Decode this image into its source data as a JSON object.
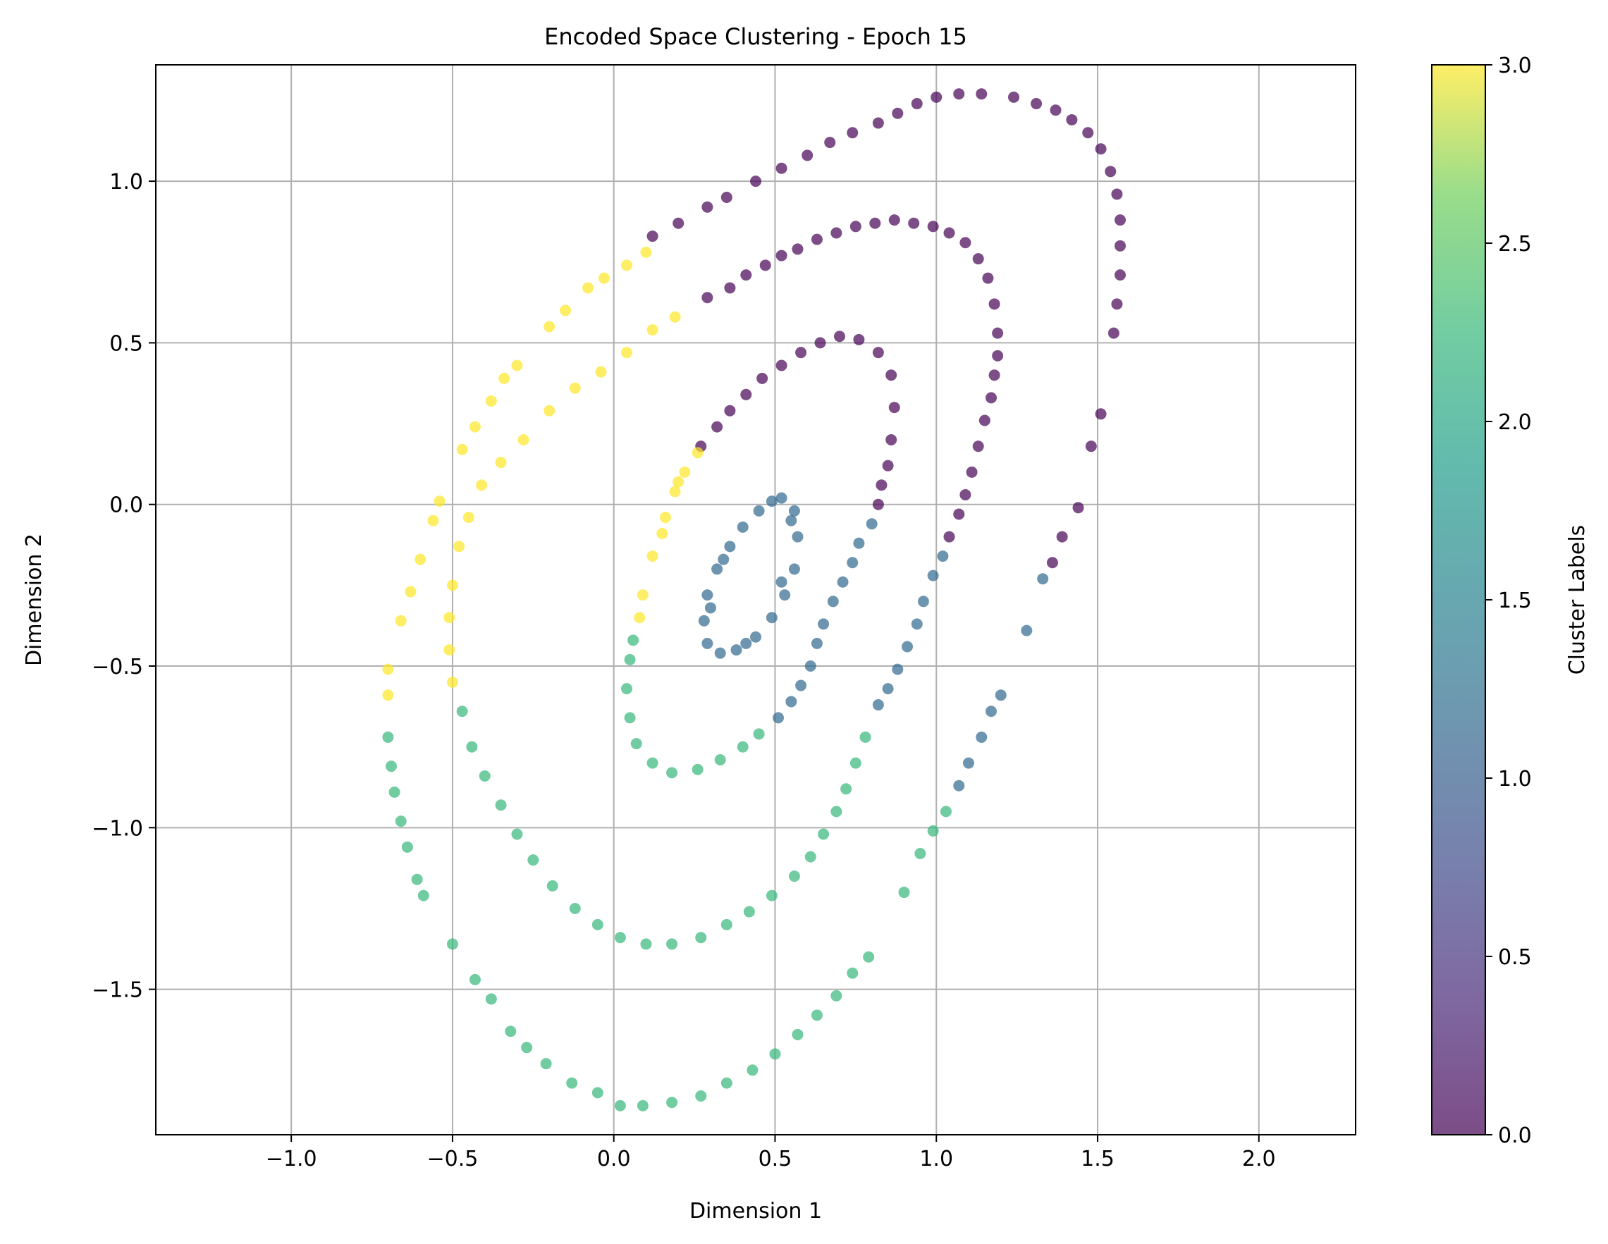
{
  "chart_data": {
    "type": "scatter",
    "title": "Encoded Space Clustering - Epoch 15",
    "xlabel": "Dimension 1",
    "ylabel": "Dimension 2",
    "xlim": [
      -1.42,
      2.3
    ],
    "ylim": [
      -1.95,
      1.36
    ],
    "xticks": [
      -1.0,
      -0.5,
      0.0,
      0.5,
      1.0,
      1.5,
      2.0
    ],
    "xtick_labels": [
      "−1.0",
      "−0.5",
      "0.0",
      "0.5",
      "1.0",
      "1.5",
      "2.0"
    ],
    "yticks": [
      -1.5,
      -1.0,
      -0.5,
      0.0,
      0.5,
      1.0
    ],
    "ytick_labels": [
      "−1.5",
      "−1.0",
      "−0.5",
      "0.0",
      "0.5",
      "1.0"
    ],
    "grid": true,
    "marker_alpha": 0.7,
    "colorbar": {
      "label": "Cluster Labels",
      "range": [
        0.0,
        3.0
      ],
      "ticks": [
        0.0,
        0.5,
        1.0,
        1.5,
        2.0,
        2.5,
        3.0
      ],
      "tick_labels": [
        "0.0",
        "0.5",
        "1.0",
        "1.5",
        "2.0",
        "2.5",
        "3.0"
      ],
      "colormap": "viridis"
    },
    "label_colors": {
      "0": "#440154",
      "1": "#31688e",
      "2": "#35b779",
      "3": "#fde725"
    },
    "points": [
      {
        "x": 0.52,
        "y": 0.02,
        "label": 1
      },
      {
        "x": 0.56,
        "y": -0.02,
        "label": 1
      },
      {
        "x": 0.57,
        "y": -0.1,
        "label": 1
      },
      {
        "x": 0.56,
        "y": -0.2,
        "label": 1
      },
      {
        "x": 0.53,
        "y": -0.28,
        "label": 1
      },
      {
        "x": 0.49,
        "y": -0.35,
        "label": 1
      },
      {
        "x": 0.44,
        "y": -0.41,
        "label": 1
      },
      {
        "x": 0.38,
        "y": -0.45,
        "label": 1
      },
      {
        "x": 0.33,
        "y": -0.46,
        "label": 1
      },
      {
        "x": 0.29,
        "y": -0.43,
        "label": 1
      },
      {
        "x": 0.28,
        "y": -0.36,
        "label": 1
      },
      {
        "x": 0.29,
        "y": -0.28,
        "label": 1
      },
      {
        "x": 0.32,
        "y": -0.2,
        "label": 1
      },
      {
        "x": 0.36,
        "y": -0.13,
        "label": 1
      },
      {
        "x": 0.4,
        "y": -0.07,
        "label": 1
      },
      {
        "x": 0.45,
        "y": -0.02,
        "label": 1
      },
      {
        "x": 0.49,
        "y": 0.01,
        "label": 1
      },
      {
        "x": 0.55,
        "y": -0.05,
        "label": 1
      },
      {
        "x": 0.52,
        "y": -0.24,
        "label": 1
      },
      {
        "x": 0.41,
        "y": -0.43,
        "label": 1
      },
      {
        "x": 0.3,
        "y": -0.32,
        "label": 1
      },
      {
        "x": 0.34,
        "y": -0.17,
        "label": 1
      },
      {
        "x": 0.27,
        "y": 0.18,
        "label": 0
      },
      {
        "x": 0.32,
        "y": 0.24,
        "label": 0
      },
      {
        "x": 0.36,
        "y": 0.29,
        "label": 0
      },
      {
        "x": 0.41,
        "y": 0.34,
        "label": 0
      },
      {
        "x": 0.46,
        "y": 0.39,
        "label": 0
      },
      {
        "x": 0.52,
        "y": 0.43,
        "label": 0
      },
      {
        "x": 0.58,
        "y": 0.47,
        "label": 0
      },
      {
        "x": 0.64,
        "y": 0.5,
        "label": 0
      },
      {
        "x": 0.7,
        "y": 0.52,
        "label": 0
      },
      {
        "x": 0.76,
        "y": 0.51,
        "label": 0
      },
      {
        "x": 0.82,
        "y": 0.47,
        "label": 0
      },
      {
        "x": 0.86,
        "y": 0.4,
        "label": 0
      },
      {
        "x": 0.87,
        "y": 0.3,
        "label": 0
      },
      {
        "x": 0.86,
        "y": 0.2,
        "label": 0
      },
      {
        "x": 0.85,
        "y": 0.12,
        "label": 0
      },
      {
        "x": 0.83,
        "y": 0.06,
        "label": 0
      },
      {
        "x": 0.82,
        "y": 0.0,
        "label": 0
      },
      {
        "x": 0.8,
        "y": -0.06,
        "label": 1
      },
      {
        "x": 0.76,
        "y": -0.12,
        "label": 1
      },
      {
        "x": 0.74,
        "y": -0.18,
        "label": 1
      },
      {
        "x": 0.71,
        "y": -0.24,
        "label": 1
      },
      {
        "x": 0.68,
        "y": -0.3,
        "label": 1
      },
      {
        "x": 0.65,
        "y": -0.37,
        "label": 1
      },
      {
        "x": 0.63,
        "y": -0.43,
        "label": 1
      },
      {
        "x": 0.61,
        "y": -0.5,
        "label": 1
      },
      {
        "x": 0.58,
        "y": -0.56,
        "label": 1
      },
      {
        "x": 0.55,
        "y": -0.61,
        "label": 1
      },
      {
        "x": 0.51,
        "y": -0.66,
        "label": 1
      },
      {
        "x": 0.45,
        "y": -0.71,
        "label": 2
      },
      {
        "x": 0.4,
        "y": -0.75,
        "label": 2
      },
      {
        "x": 0.33,
        "y": -0.79,
        "label": 2
      },
      {
        "x": 0.26,
        "y": -0.82,
        "label": 2
      },
      {
        "x": 0.18,
        "y": -0.83,
        "label": 2
      },
      {
        "x": 0.12,
        "y": -0.8,
        "label": 2
      },
      {
        "x": 0.07,
        "y": -0.74,
        "label": 2
      },
      {
        "x": 0.05,
        "y": -0.66,
        "label": 2
      },
      {
        "x": 0.04,
        "y": -0.57,
        "label": 2
      },
      {
        "x": 0.05,
        "y": -0.48,
        "label": 2
      },
      {
        "x": 0.06,
        "y": -0.42,
        "label": 2
      },
      {
        "x": 0.08,
        "y": -0.35,
        "label": 3
      },
      {
        "x": 0.09,
        "y": -0.28,
        "label": 3
      },
      {
        "x": 0.12,
        "y": -0.16,
        "label": 3
      },
      {
        "x": 0.16,
        "y": -0.04,
        "label": 3
      },
      {
        "x": 0.19,
        "y": 0.04,
        "label": 3
      },
      {
        "x": 0.22,
        "y": 0.1,
        "label": 3
      },
      {
        "x": 0.26,
        "y": 0.16,
        "label": 3
      },
      {
        "x": 0.15,
        "y": -0.09,
        "label": 3
      },
      {
        "x": 0.2,
        "y": 0.07,
        "label": 3
      },
      {
        "x": 0.29,
        "y": 0.64,
        "label": 0
      },
      {
        "x": 0.36,
        "y": 0.67,
        "label": 0
      },
      {
        "x": 0.41,
        "y": 0.71,
        "label": 0
      },
      {
        "x": 0.47,
        "y": 0.74,
        "label": 0
      },
      {
        "x": 0.52,
        "y": 0.77,
        "label": 0
      },
      {
        "x": 0.57,
        "y": 0.79,
        "label": 0
      },
      {
        "x": 0.63,
        "y": 0.82,
        "label": 0
      },
      {
        "x": 0.69,
        "y": 0.84,
        "label": 0
      },
      {
        "x": 0.75,
        "y": 0.86,
        "label": 0
      },
      {
        "x": 0.81,
        "y": 0.87,
        "label": 0
      },
      {
        "x": 0.87,
        "y": 0.88,
        "label": 0
      },
      {
        "x": 0.93,
        "y": 0.87,
        "label": 0
      },
      {
        "x": 0.99,
        "y": 0.86,
        "label": 0
      },
      {
        "x": 1.04,
        "y": 0.84,
        "label": 0
      },
      {
        "x": 1.09,
        "y": 0.81,
        "label": 0
      },
      {
        "x": 1.13,
        "y": 0.76,
        "label": 0
      },
      {
        "x": 1.16,
        "y": 0.7,
        "label": 0
      },
      {
        "x": 1.18,
        "y": 0.62,
        "label": 0
      },
      {
        "x": 1.19,
        "y": 0.53,
        "label": 0
      },
      {
        "x": 1.19,
        "y": 0.46,
        "label": 0
      },
      {
        "x": 1.18,
        "y": 0.4,
        "label": 0
      },
      {
        "x": 1.17,
        "y": 0.33,
        "label": 0
      },
      {
        "x": 1.15,
        "y": 0.26,
        "label": 0
      },
      {
        "x": 1.13,
        "y": 0.18,
        "label": 0
      },
      {
        "x": 1.11,
        "y": 0.1,
        "label": 0
      },
      {
        "x": 1.09,
        "y": 0.03,
        "label": 0
      },
      {
        "x": 1.07,
        "y": -0.03,
        "label": 0
      },
      {
        "x": 1.04,
        "y": -0.1,
        "label": 0
      },
      {
        "x": 1.02,
        "y": -0.16,
        "label": 1
      },
      {
        "x": 0.99,
        "y": -0.22,
        "label": 1
      },
      {
        "x": 0.96,
        "y": -0.3,
        "label": 1
      },
      {
        "x": 0.94,
        "y": -0.37,
        "label": 1
      },
      {
        "x": 0.91,
        "y": -0.44,
        "label": 1
      },
      {
        "x": 0.88,
        "y": -0.51,
        "label": 1
      },
      {
        "x": 0.85,
        "y": -0.57,
        "label": 1
      },
      {
        "x": 0.82,
        "y": -0.62,
        "label": 1
      },
      {
        "x": 0.78,
        "y": -0.72,
        "label": 2
      },
      {
        "x": 0.75,
        "y": -0.8,
        "label": 2
      },
      {
        "x": 0.72,
        "y": -0.88,
        "label": 2
      },
      {
        "x": 0.69,
        "y": -0.95,
        "label": 2
      },
      {
        "x": 0.65,
        "y": -1.02,
        "label": 2
      },
      {
        "x": 0.61,
        "y": -1.09,
        "label": 2
      },
      {
        "x": 0.56,
        "y": -1.15,
        "label": 2
      },
      {
        "x": 0.49,
        "y": -1.21,
        "label": 2
      },
      {
        "x": 0.42,
        "y": -1.26,
        "label": 2
      },
      {
        "x": 0.35,
        "y": -1.3,
        "label": 2
      },
      {
        "x": 0.27,
        "y": -1.34,
        "label": 2
      },
      {
        "x": 0.18,
        "y": -1.36,
        "label": 2
      },
      {
        "x": 0.1,
        "y": -1.36,
        "label": 2
      },
      {
        "x": 0.02,
        "y": -1.34,
        "label": 2
      },
      {
        "x": -0.05,
        "y": -1.3,
        "label": 2
      },
      {
        "x": -0.12,
        "y": -1.25,
        "label": 2
      },
      {
        "x": -0.19,
        "y": -1.18,
        "label": 2
      },
      {
        "x": -0.25,
        "y": -1.1,
        "label": 2
      },
      {
        "x": -0.3,
        "y": -1.02,
        "label": 2
      },
      {
        "x": -0.35,
        "y": -0.93,
        "label": 2
      },
      {
        "x": -0.4,
        "y": -0.84,
        "label": 2
      },
      {
        "x": -0.44,
        "y": -0.75,
        "label": 2
      },
      {
        "x": -0.47,
        "y": -0.64,
        "label": 2
      },
      {
        "x": -0.5,
        "y": -0.55,
        "label": 3
      },
      {
        "x": -0.51,
        "y": -0.45,
        "label": 3
      },
      {
        "x": -0.51,
        "y": -0.35,
        "label": 3
      },
      {
        "x": -0.5,
        "y": -0.25,
        "label": 3
      },
      {
        "x": -0.48,
        "y": -0.13,
        "label": 3
      },
      {
        "x": -0.45,
        "y": -0.04,
        "label": 3
      },
      {
        "x": -0.41,
        "y": 0.06,
        "label": 3
      },
      {
        "x": -0.35,
        "y": 0.13,
        "label": 3
      },
      {
        "x": -0.28,
        "y": 0.2,
        "label": 3
      },
      {
        "x": -0.2,
        "y": 0.29,
        "label": 3
      },
      {
        "x": -0.12,
        "y": 0.36,
        "label": 3
      },
      {
        "x": -0.04,
        "y": 0.41,
        "label": 3
      },
      {
        "x": 0.04,
        "y": 0.47,
        "label": 3
      },
      {
        "x": 0.12,
        "y": 0.54,
        "label": 3
      },
      {
        "x": 0.19,
        "y": 0.58,
        "label": 3
      },
      {
        "x": 0.12,
        "y": 0.83,
        "label": 0
      },
      {
        "x": 0.2,
        "y": 0.87,
        "label": 0
      },
      {
        "x": 0.29,
        "y": 0.92,
        "label": 0
      },
      {
        "x": 0.35,
        "y": 0.95,
        "label": 0
      },
      {
        "x": 0.44,
        "y": 1.0,
        "label": 0
      },
      {
        "x": 0.52,
        "y": 1.04,
        "label": 0
      },
      {
        "x": 0.6,
        "y": 1.08,
        "label": 0
      },
      {
        "x": 0.67,
        "y": 1.12,
        "label": 0
      },
      {
        "x": 0.74,
        "y": 1.15,
        "label": 0
      },
      {
        "x": 0.82,
        "y": 1.18,
        "label": 0
      },
      {
        "x": 0.88,
        "y": 1.21,
        "label": 0
      },
      {
        "x": 0.94,
        "y": 1.24,
        "label": 0
      },
      {
        "x": 1.0,
        "y": 1.26,
        "label": 0
      },
      {
        "x": 1.07,
        "y": 1.27,
        "label": 0
      },
      {
        "x": 1.14,
        "y": 1.27,
        "label": 0
      },
      {
        "x": 1.24,
        "y": 1.26,
        "label": 0
      },
      {
        "x": 1.31,
        "y": 1.24,
        "label": 0
      },
      {
        "x": 1.37,
        "y": 1.22,
        "label": 0
      },
      {
        "x": 1.42,
        "y": 1.19,
        "label": 0
      },
      {
        "x": 1.47,
        "y": 1.15,
        "label": 0
      },
      {
        "x": 1.51,
        "y": 1.1,
        "label": 0
      },
      {
        "x": 1.54,
        "y": 1.03,
        "label": 0
      },
      {
        "x": 1.56,
        "y": 0.96,
        "label": 0
      },
      {
        "x": 1.57,
        "y": 0.88,
        "label": 0
      },
      {
        "x": 1.57,
        "y": 0.8,
        "label": 0
      },
      {
        "x": 1.57,
        "y": 0.71,
        "label": 0
      },
      {
        "x": 1.56,
        "y": 0.62,
        "label": 0
      },
      {
        "x": 1.55,
        "y": 0.53,
        "label": 0
      },
      {
        "x": 1.51,
        "y": 0.28,
        "label": 0
      },
      {
        "x": 1.48,
        "y": 0.18,
        "label": 0
      },
      {
        "x": 1.44,
        "y": -0.01,
        "label": 0
      },
      {
        "x": 1.39,
        "y": -0.1,
        "label": 0
      },
      {
        "x": 1.36,
        "y": -0.18,
        "label": 0
      },
      {
        "x": 1.33,
        "y": -0.23,
        "label": 1
      },
      {
        "x": 1.28,
        "y": -0.39,
        "label": 1
      },
      {
        "x": 1.2,
        "y": -0.59,
        "label": 1
      },
      {
        "x": 1.17,
        "y": -0.64,
        "label": 1
      },
      {
        "x": 1.14,
        "y": -0.72,
        "label": 1
      },
      {
        "x": 1.1,
        "y": -0.8,
        "label": 1
      },
      {
        "x": 1.07,
        "y": -0.87,
        "label": 1
      },
      {
        "x": 1.03,
        "y": -0.95,
        "label": 2
      },
      {
        "x": 0.99,
        "y": -1.01,
        "label": 2
      },
      {
        "x": 0.95,
        "y": -1.08,
        "label": 2
      },
      {
        "x": 0.9,
        "y": -1.2,
        "label": 2
      },
      {
        "x": 0.79,
        "y": -1.4,
        "label": 2
      },
      {
        "x": 0.74,
        "y": -1.45,
        "label": 2
      },
      {
        "x": 0.69,
        "y": -1.52,
        "label": 2
      },
      {
        "x": 0.63,
        "y": -1.58,
        "label": 2
      },
      {
        "x": 0.57,
        "y": -1.64,
        "label": 2
      },
      {
        "x": 0.5,
        "y": -1.7,
        "label": 2
      },
      {
        "x": 0.43,
        "y": -1.75,
        "label": 2
      },
      {
        "x": 0.35,
        "y": -1.79,
        "label": 2
      },
      {
        "x": 0.27,
        "y": -1.83,
        "label": 2
      },
      {
        "x": 0.18,
        "y": -1.85,
        "label": 2
      },
      {
        "x": 0.09,
        "y": -1.86,
        "label": 2
      },
      {
        "x": 0.02,
        "y": -1.86,
        "label": 2
      },
      {
        "x": -0.05,
        "y": -1.82,
        "label": 2
      },
      {
        "x": -0.13,
        "y": -1.79,
        "label": 2
      },
      {
        "x": -0.21,
        "y": -1.73,
        "label": 2
      },
      {
        "x": -0.27,
        "y": -1.68,
        "label": 2
      },
      {
        "x": -0.32,
        "y": -1.63,
        "label": 2
      },
      {
        "x": -0.38,
        "y": -1.53,
        "label": 2
      },
      {
        "x": -0.43,
        "y": -1.47,
        "label": 2
      },
      {
        "x": -0.5,
        "y": -1.36,
        "label": 2
      },
      {
        "x": -0.59,
        "y": -1.21,
        "label": 2
      },
      {
        "x": -0.61,
        "y": -1.16,
        "label": 2
      },
      {
        "x": -0.64,
        "y": -1.06,
        "label": 2
      },
      {
        "x": -0.66,
        "y": -0.98,
        "label": 2
      },
      {
        "x": -0.68,
        "y": -0.89,
        "label": 2
      },
      {
        "x": -0.69,
        "y": -0.81,
        "label": 2
      },
      {
        "x": -0.7,
        "y": -0.72,
        "label": 2
      },
      {
        "x": -0.7,
        "y": -0.59,
        "label": 3
      },
      {
        "x": -0.7,
        "y": -0.51,
        "label": 3
      },
      {
        "x": -0.66,
        "y": -0.36,
        "label": 3
      },
      {
        "x": -0.63,
        "y": -0.27,
        "label": 3
      },
      {
        "x": -0.6,
        "y": -0.17,
        "label": 3
      },
      {
        "x": -0.56,
        "y": -0.05,
        "label": 3
      },
      {
        "x": -0.54,
        "y": 0.01,
        "label": 3
      },
      {
        "x": -0.47,
        "y": 0.17,
        "label": 3
      },
      {
        "x": -0.43,
        "y": 0.24,
        "label": 3
      },
      {
        "x": -0.38,
        "y": 0.32,
        "label": 3
      },
      {
        "x": -0.34,
        "y": 0.39,
        "label": 3
      },
      {
        "x": -0.3,
        "y": 0.43,
        "label": 3
      },
      {
        "x": -0.2,
        "y": 0.55,
        "label": 3
      },
      {
        "x": -0.15,
        "y": 0.6,
        "label": 3
      },
      {
        "x": -0.08,
        "y": 0.67,
        "label": 3
      },
      {
        "x": -0.03,
        "y": 0.7,
        "label": 3
      },
      {
        "x": 0.04,
        "y": 0.74,
        "label": 3
      },
      {
        "x": 0.1,
        "y": 0.78,
        "label": 3
      }
    ]
  }
}
